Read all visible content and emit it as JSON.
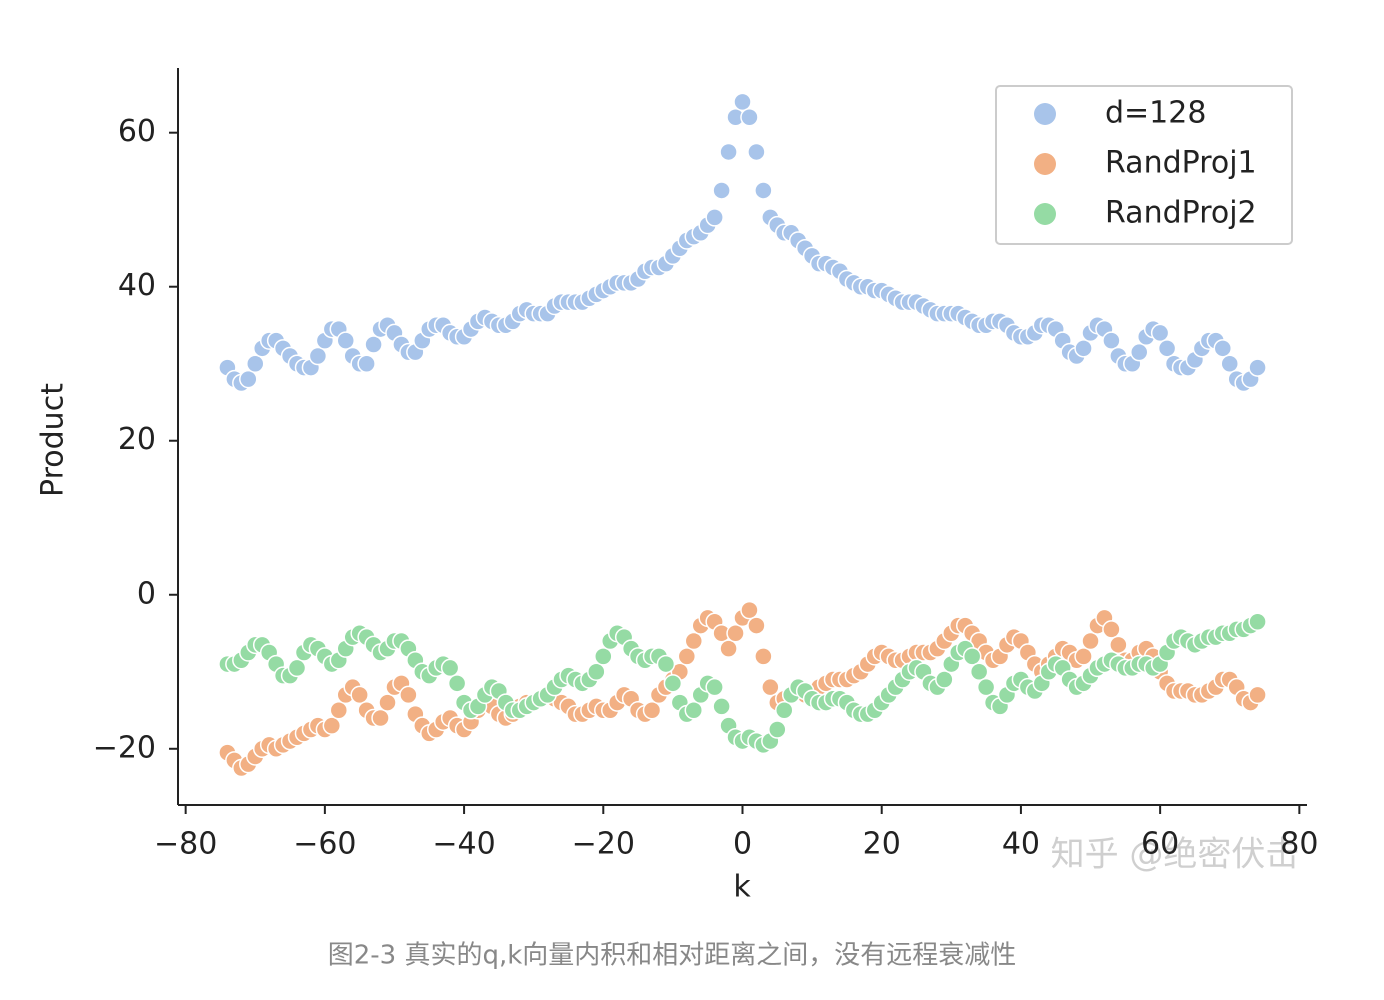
{
  "chart_data": {
    "type": "scatter",
    "x_label": "k",
    "y_label": "Product",
    "caption": "图2-3 真实的q,k向量内积和相对距离之间，没有远程衰减性",
    "watermark": "知乎 @绝密伏击",
    "legend": "upper right",
    "xlim": [
      -81.1,
      81.1
    ],
    "ylim": [
      -27.3,
      68.4
    ],
    "xticks": [
      {
        "value": -80,
        "label": "−80"
      },
      {
        "value": -60,
        "label": "−60"
      },
      {
        "value": -40,
        "label": "−40"
      },
      {
        "value": -20,
        "label": "−20"
      },
      0,
      20,
      40,
      60,
      80
    ],
    "yticks": [
      {
        "value": -20,
        "label": "−20"
      },
      0,
      20,
      40,
      60
    ],
    "x": [
      -74,
      -73,
      -72,
      -71,
      -70,
      -69,
      -68,
      -67,
      -66,
      -65,
      -64,
      -63,
      -62,
      -61,
      -60,
      -59,
      -58,
      -57,
      -56,
      -55,
      -54,
      -53,
      -52,
      -51,
      -50,
      -49,
      -48,
      -47,
      -46,
      -45,
      -44,
      -43,
      -42,
      -41,
      -40,
      -39,
      -38,
      -37,
      -36,
      -35,
      -34,
      -33,
      -32,
      -31,
      -30,
      -29,
      -28,
      -27,
      -26,
      -25,
      -24,
      -23,
      -22,
      -21,
      -20,
      -19,
      -18,
      -17,
      -16,
      -15,
      -14,
      -13,
      -12,
      -11,
      -10,
      -9,
      -8,
      -7,
      -6,
      -5,
      -4,
      -3,
      -2,
      -1,
      0,
      1,
      2,
      3,
      4,
      5,
      6,
      7,
      8,
      9,
      10,
      11,
      12,
      13,
      14,
      15,
      16,
      17,
      18,
      19,
      20,
      21,
      22,
      23,
      24,
      25,
      26,
      27,
      28,
      29,
      30,
      31,
      32,
      33,
      34,
      35,
      36,
      37,
      38,
      39,
      40,
      41,
      42,
      43,
      44,
      45,
      46,
      47,
      48,
      49,
      50,
      51,
      52,
      53,
      54,
      55,
      56,
      57,
      58,
      59,
      60,
      61,
      62,
      63,
      64,
      65,
      66,
      67,
      68,
      69,
      70,
      71,
      72,
      73,
      74
    ],
    "series": [
      {
        "name": "d=128",
        "color": "#a8c4ea",
        "values": [
          29.5,
          28,
          27.5,
          28,
          30,
          32,
          33,
          33,
          32,
          31,
          30,
          29.5,
          29.5,
          31,
          33,
          34.5,
          34.5,
          33,
          31,
          30,
          30,
          32.5,
          34.5,
          35,
          34,
          32.5,
          31.5,
          31.5,
          33,
          34.5,
          35,
          35,
          34,
          33.5,
          33.5,
          34.5,
          35.5,
          36,
          35.5,
          35,
          35,
          35.5,
          36.5,
          37,
          36.5,
          36.5,
          36.5,
          37.5,
          38,
          38,
          38,
          38,
          38.5,
          39,
          39.5,
          40,
          40.5,
          40.5,
          40.5,
          41,
          42,
          42.5,
          42.5,
          43,
          44,
          45,
          46,
          46.5,
          47,
          48,
          49,
          52.5,
          57.5,
          62,
          64,
          62,
          57.5,
          52.5,
          49,
          48,
          47,
          47,
          46,
          45,
          44,
          43,
          43,
          42.5,
          42,
          41,
          40.5,
          40,
          40,
          39.5,
          39.5,
          39,
          38.5,
          38,
          38,
          38,
          37.5,
          37,
          36.5,
          36.5,
          36.5,
          36.5,
          36,
          35.5,
          35,
          35,
          35.5,
          35.5,
          35,
          34,
          33.5,
          33.5,
          34,
          35,
          35,
          34.5,
          33,
          31.5,
          31,
          32,
          34,
          35,
          34.5,
          33,
          31,
          30,
          30,
          31.5,
          33.5,
          34.5,
          34,
          32,
          30,
          29.5,
          29.5,
          30.5,
          32,
          33,
          33,
          32,
          30,
          28,
          27.5,
          28,
          29.5
        ]
      },
      {
        "name": "RandProj1",
        "color": "#f2b084",
        "values": [
          -20.5,
          -21.5,
          -22.5,
          -22,
          -21,
          -20,
          -19.5,
          -20,
          -19.5,
          -19,
          -18.5,
          -18,
          -17.5,
          -17,
          -17.5,
          -17,
          -15,
          -13,
          -12,
          -13,
          -15,
          -16,
          -16,
          -14,
          -12,
          -11.5,
          -13,
          -15.5,
          -17,
          -18,
          -17.5,
          -16.5,
          -16,
          -17,
          -17.5,
          -16.5,
          -15,
          -14,
          -14.5,
          -15.5,
          -16,
          -15.5,
          -14.5,
          -14,
          -14,
          -13.5,
          -13,
          -13.5,
          -14,
          -14.5,
          -15.5,
          -15.5,
          -15,
          -14.5,
          -15,
          -15,
          -14,
          -13,
          -13.5,
          -15,
          -15.5,
          -15,
          -13,
          -12,
          -11,
          -10,
          -8,
          -6,
          -4,
          -3,
          -3.5,
          -5,
          -7,
          -5,
          -3,
          -2,
          -4,
          -8,
          -12,
          -14,
          -13.5,
          -13,
          -12.5,
          -13,
          -13,
          -12,
          -11.5,
          -11,
          -11,
          -11,
          -10.5,
          -10,
          -9,
          -8,
          -7.5,
          -8,
          -8.5,
          -8.5,
          -8,
          -7.5,
          -7.5,
          -7.5,
          -7,
          -6,
          -5,
          -4,
          -4,
          -5,
          -6,
          -7.5,
          -8.5,
          -8,
          -6.5,
          -5.5,
          -6,
          -7.5,
          -9,
          -10,
          -9,
          -8,
          -7,
          -7.5,
          -8.5,
          -8,
          -6,
          -4,
          -3,
          -4.5,
          -6.5,
          -8.5,
          -8.5,
          -7.5,
          -7,
          -8,
          -10,
          -11.5,
          -12.5,
          -12.5,
          -12.5,
          -13,
          -13,
          -12.5,
          -12,
          -11,
          -11,
          -12,
          -13.5,
          -14,
          -13
        ]
      },
      {
        "name": "RandProj2",
        "color": "#95dba4",
        "values": [
          -9,
          -9,
          -8.5,
          -7.5,
          -6.5,
          -6.5,
          -7.5,
          -9,
          -10.5,
          -10.5,
          -9.5,
          -7.5,
          -6.5,
          -7,
          -8,
          -9,
          -8.5,
          -7,
          -5.5,
          -5,
          -5.5,
          -6.5,
          -7.5,
          -7,
          -6,
          -6,
          -7,
          -8.5,
          -10,
          -10.5,
          -9.5,
          -9,
          -9.5,
          -11.5,
          -14,
          -15,
          -14.5,
          -13,
          -12,
          -12.5,
          -14,
          -15,
          -15,
          -14.5,
          -14,
          -13.5,
          -13,
          -12,
          -11,
          -10.5,
          -11,
          -11.5,
          -11,
          -10,
          -8,
          -6,
          -5,
          -5.5,
          -7,
          -8,
          -8.5,
          -8,
          -8,
          -9,
          -11.5,
          -14,
          -15.5,
          -15,
          -13,
          -11.5,
          -12,
          -14.5,
          -17,
          -18.5,
          -19,
          -18.5,
          -19,
          -19.5,
          -19,
          -17.5,
          -15,
          -13,
          -12,
          -12.5,
          -13.5,
          -14,
          -14,
          -13.5,
          -13.5,
          -14,
          -15,
          -15.5,
          -15.5,
          -15,
          -14,
          -13,
          -12,
          -11,
          -10,
          -9.5,
          -10,
          -11.5,
          -12,
          -11,
          -9,
          -7.5,
          -7,
          -8,
          -10,
          -12,
          -14,
          -14.5,
          -13,
          -11.5,
          -11,
          -12,
          -12.5,
          -11.5,
          -10,
          -9,
          -9.5,
          -11,
          -12,
          -11.5,
          -10.5,
          -9.5,
          -9,
          -8.5,
          -9,
          -9.5,
          -9.5,
          -9,
          -9,
          -9.5,
          -9,
          -7.5,
          -6,
          -5.5,
          -6,
          -6.5,
          -6,
          -5.5,
          -5.5,
          -5,
          -5,
          -4.5,
          -4.5,
          -4,
          -3.5
        ]
      }
    ]
  }
}
